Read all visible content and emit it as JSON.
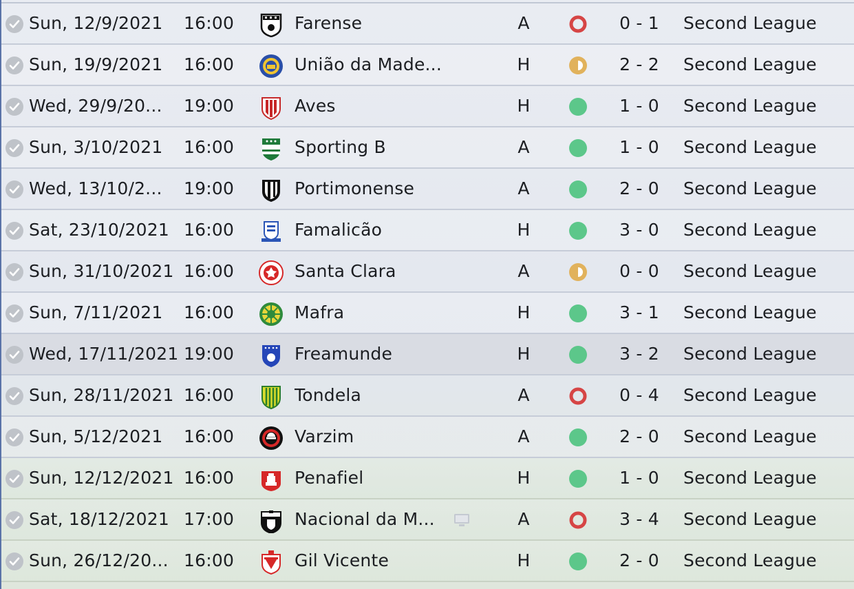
{
  "colors": {
    "win": "#5cc78a",
    "draw": "#e1b25c",
    "loss": "#d64545",
    "check": "#bfc3c9"
  },
  "fixtures": [
    {
      "date": "Sun, 12/9/2021",
      "time": "16:00",
      "crest": "farense-crest-icon",
      "team": "Farense",
      "venue": "A",
      "result": "loss",
      "score": "0 - 1",
      "competition": "Second League"
    },
    {
      "date": "Sun, 19/9/2021",
      "time": "16:00",
      "crest": "uniao-da-madeira-crest-icon",
      "team": "União da Made...",
      "venue": "H",
      "result": "draw",
      "score": "2 - 2",
      "competition": "Second League"
    },
    {
      "date": "Wed, 29/9/20...",
      "time": "19:00",
      "crest": "aves-crest-icon",
      "team": "Aves",
      "venue": "H",
      "result": "win",
      "score": "1 - 0",
      "competition": "Second League"
    },
    {
      "date": "Sun, 3/10/2021",
      "time": "16:00",
      "crest": "sporting-b-crest-icon",
      "team": "Sporting B",
      "venue": "A",
      "result": "win",
      "score": "1 - 0",
      "competition": "Second League"
    },
    {
      "date": "Wed, 13/10/2...",
      "time": "19:00",
      "crest": "portimonense-crest-icon",
      "team": "Portimonense",
      "venue": "A",
      "result": "win",
      "score": "2 - 0",
      "competition": "Second League"
    },
    {
      "date": "Sat, 23/10/2021",
      "time": "16:00",
      "crest": "famalicao-crest-icon",
      "team": "Famalicão",
      "venue": "H",
      "result": "win",
      "score": "3 - 0",
      "competition": "Second League"
    },
    {
      "date": "Sun, 31/10/2021",
      "time": "16:00",
      "crest": "santa-clara-crest-icon",
      "team": "Santa Clara",
      "venue": "A",
      "result": "draw",
      "score": "0 - 0",
      "competition": "Second League"
    },
    {
      "date": "Sun, 7/11/2021",
      "time": "16:00",
      "crest": "mafra-crest-icon",
      "team": "Mafra",
      "venue": "H",
      "result": "win",
      "score": "3 - 1",
      "competition": "Second League"
    },
    {
      "date": "Wed, 17/11/2021",
      "time": "19:00",
      "crest": "freamunde-crest-icon",
      "team": "Freamunde",
      "venue": "H",
      "result": "win",
      "score": "3 - 2",
      "competition": "Second League"
    },
    {
      "date": "Sun, 28/11/2021",
      "time": "16:00",
      "crest": "tondela-crest-icon",
      "team": "Tondela",
      "venue": "A",
      "result": "loss",
      "score": "0 - 4",
      "competition": "Second League"
    },
    {
      "date": "Sun, 5/12/2021",
      "time": "16:00",
      "crest": "varzim-crest-icon",
      "team": "Varzim",
      "venue": "A",
      "result": "win",
      "score": "2 - 0",
      "competition": "Second League"
    },
    {
      "date": "Sun, 12/12/2021",
      "time": "16:00",
      "crest": "penafiel-crest-icon",
      "team": "Penafiel",
      "venue": "H",
      "result": "win",
      "score": "1 - 0",
      "competition": "Second League"
    },
    {
      "date": "Sat, 18/12/2021",
      "time": "17:00",
      "crest": "nacional-crest-icon",
      "team": "Nacional da M...",
      "tv": "tv-icon",
      "venue": "A",
      "result": "loss",
      "score": "3 - 4",
      "competition": "Second League"
    },
    {
      "date": "Sun, 26/12/20...",
      "time": "16:00",
      "crest": "gil-vicente-crest-icon",
      "team": "Gil Vicente",
      "venue": "H",
      "result": "win",
      "score": "2 - 0",
      "competition": "Second League"
    }
  ]
}
